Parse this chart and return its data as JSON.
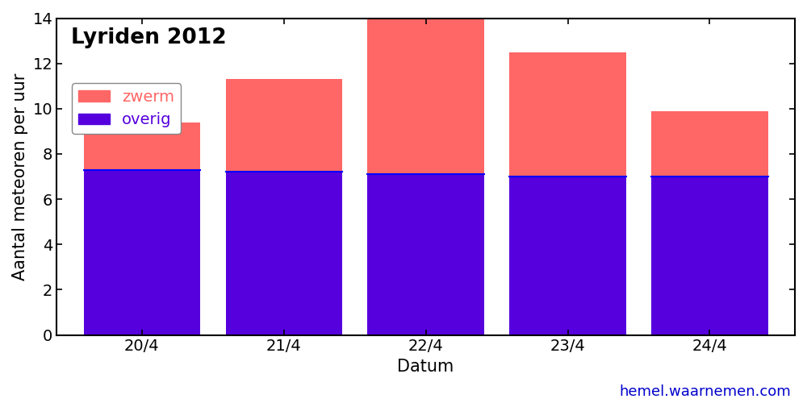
{
  "categories": [
    "20/4",
    "21/4",
    "22/4",
    "23/4",
    "24/4"
  ],
  "overig": [
    7.3,
    7.2,
    7.1,
    7.0,
    7.0
  ],
  "zwerm": [
    2.1,
    4.1,
    7.0,
    5.5,
    2.9
  ],
  "color_overig": "#5500dd",
  "color_zwerm": "#ff6666",
  "title": "Lyriden 2012",
  "ylabel": "Aantal meteoren per uur",
  "xlabel": "Datum",
  "ylim": [
    0,
    14
  ],
  "yticks": [
    0,
    2,
    4,
    6,
    8,
    10,
    12,
    14
  ],
  "legend_zwerm": "zwerm",
  "legend_overig": "overig",
  "watermark": "hemel.waarnemen.com",
  "watermark_color": "#0000cc",
  "bar_width": 0.82,
  "title_fontsize": 19,
  "label_fontsize": 15,
  "tick_fontsize": 14,
  "legend_fontsize": 14,
  "watermark_fontsize": 13,
  "background_color": "#ffffff"
}
